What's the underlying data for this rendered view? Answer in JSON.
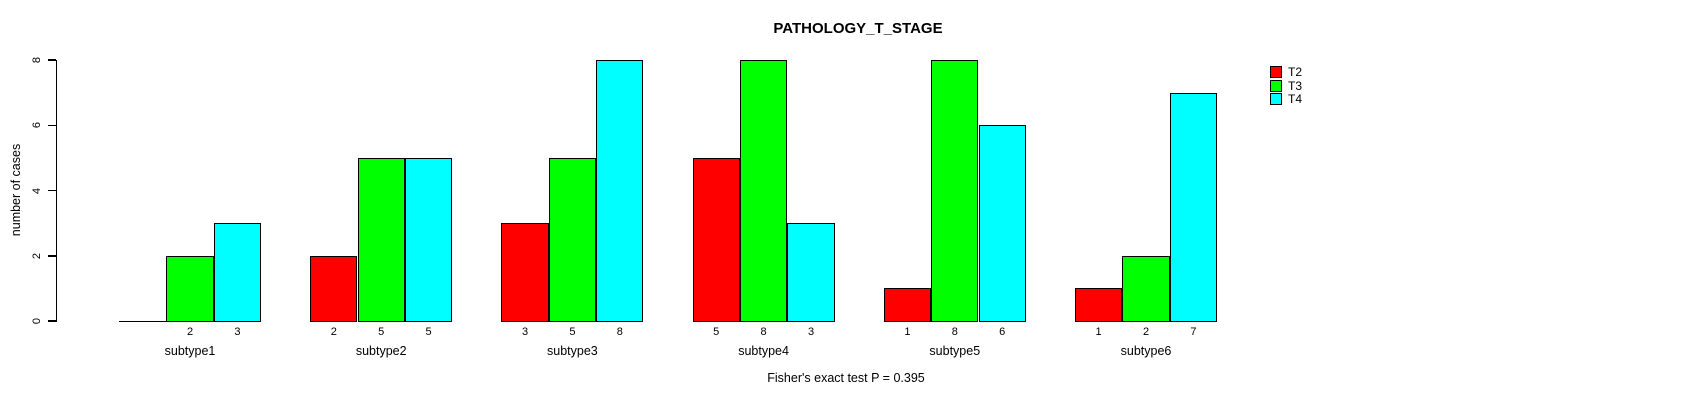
{
  "chart_data": {
    "type": "bar",
    "title": "PATHOLOGY_T_STAGE",
    "ylabel": "number of cases",
    "xlabel": "",
    "caption": "Fisher's exact test P = 0.395",
    "categories": [
      "subtype1",
      "subtype2",
      "subtype3",
      "subtype4",
      "subtype5",
      "subtype6"
    ],
    "series": [
      {
        "name": "T2",
        "color": "#ff0000",
        "values": [
          0,
          2,
          3,
          5,
          1,
          1
        ]
      },
      {
        "name": "T3",
        "color": "#00ff00",
        "values": [
          2,
          5,
          5,
          8,
          8,
          2
        ]
      },
      {
        "name": "T4",
        "color": "#00ffff",
        "values": [
          3,
          5,
          8,
          3,
          6,
          7
        ]
      }
    ],
    "bar_value_labels": {
      "subtype1": [
        "",
        "2",
        "3"
      ],
      "subtype2": [
        "2",
        "5",
        "5"
      ],
      "subtype3": [
        "3",
        "5",
        "8"
      ],
      "subtype4": [
        "5",
        "8",
        "3"
      ],
      "subtype5": [
        "1",
        "8",
        "6"
      ],
      "subtype6": [
        "1",
        "2",
        "7"
      ]
    },
    "yticks": [
      0,
      2,
      4,
      6,
      8
    ],
    "ylim": [
      0,
      8
    ],
    "grid": false,
    "legend": {
      "position": "right-top",
      "entries": [
        {
          "label": "T2",
          "color": "#ff0000"
        },
        {
          "label": "T3",
          "color": "#00ff00"
        },
        {
          "label": "T4",
          "color": "#00ffff"
        }
      ]
    },
    "colors": {
      "axis": "#000000",
      "text": "#000000",
      "background": "#ffffff"
    }
  }
}
